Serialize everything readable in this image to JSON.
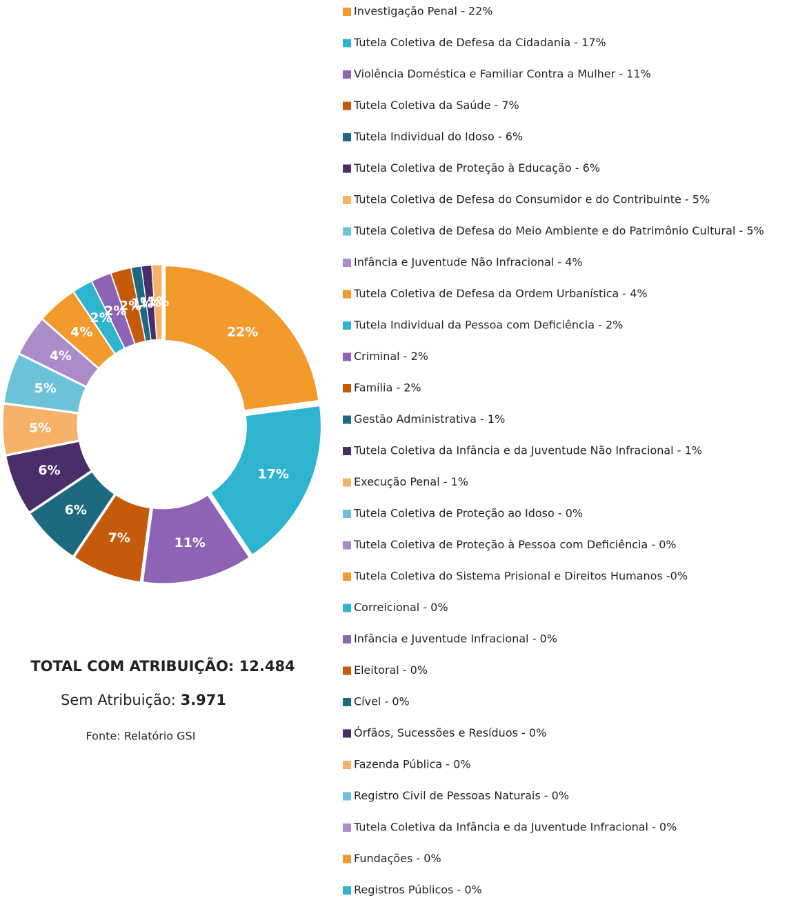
{
  "chart_data": {
    "type": "donut",
    "categories": [
      "Investigação Penal - 22%",
      "Tutela Coletiva de Defesa da Cidadania - 17%",
      "Violência Doméstica e Familiar Contra a Mulher - 11%",
      "Tutela Coletiva da Saúde - 7%",
      "Tutela Individual do Idoso - 6%",
      "Tutela Coletiva de Proteção à Educação - 6%",
      "Tutela Coletiva de Defesa do Consumidor e do Contribuinte - 5%",
      "Tutela Coletiva de Defesa do Meio Ambiente e do Patrimônio Cultural - 5%",
      "Infância e Juventude Não Infracional - 4%",
      "Tutela Coletiva de Defesa da Ordem Urbanística - 4%",
      "Tutela Individual da Pessoa com Deficiência - 2%",
      "Criminal - 2%",
      "Família - 2%",
      "Gestão Administrativa - 1%",
      "Tutela Coletiva da Infância e da Juventude Não Infracional - 1%",
      "Execução Penal - 1%",
      "Tutela Coletiva de Proteção ao Idoso - 0%",
      "Tutela Coletiva de Proteção à Pessoa com Deficiência - 0%",
      "Tutela Coletiva do Sistema Prisional e Direitos Humanos -0%",
      "Correicional - 0%",
      "Infância e Juventude Infracional - 0%",
      "Eleitoral - 0%",
      "Cível - 0%",
      "Órfãos, Sucessões e Resíduos - 0%",
      "Fazenda Pública - 0%",
      "Registro Civil de Pessoas Naturais - 0%",
      "Tutela Coletiva da Infância e da Juventude Infracional - 0%",
      "Fundações - 0%",
      "Registros Públicos - 0%"
    ],
    "values": [
      22,
      17,
      11,
      7,
      6,
      6,
      5,
      5,
      4,
      4,
      2,
      2,
      2,
      1,
      1,
      1,
      0,
      0,
      0,
      0,
      0,
      0,
      0,
      0,
      0,
      0,
      0,
      0,
      0
    ],
    "value_labels": [
      "22%",
      "17%",
      "11%",
      "7%",
      "6%",
      "6%",
      "5%",
      "5%",
      "4%",
      "4%",
      "2%",
      "2%",
      "2%",
      "1%",
      "1%",
      "1%",
      null,
      null,
      null,
      null,
      null,
      null,
      null,
      null,
      null,
      null,
      null,
      null,
      null
    ],
    "colors": [
      "#f39a2c",
      "#2fb4d0",
      "#8e63b5",
      "#c45a0a",
      "#1c6a80",
      "#4a2e6a",
      "#f7b26a",
      "#6cc3d8",
      "#a98cc8"
    ],
    "legend": "right"
  },
  "totals": {
    "with_label": "TOTAL COM ATRIBUIÇÃO:",
    "with_value": "12.484",
    "without_label": "Sem Atribuição:",
    "without_value": "3.971",
    "source": "Fonte: Relatório GSI"
  }
}
